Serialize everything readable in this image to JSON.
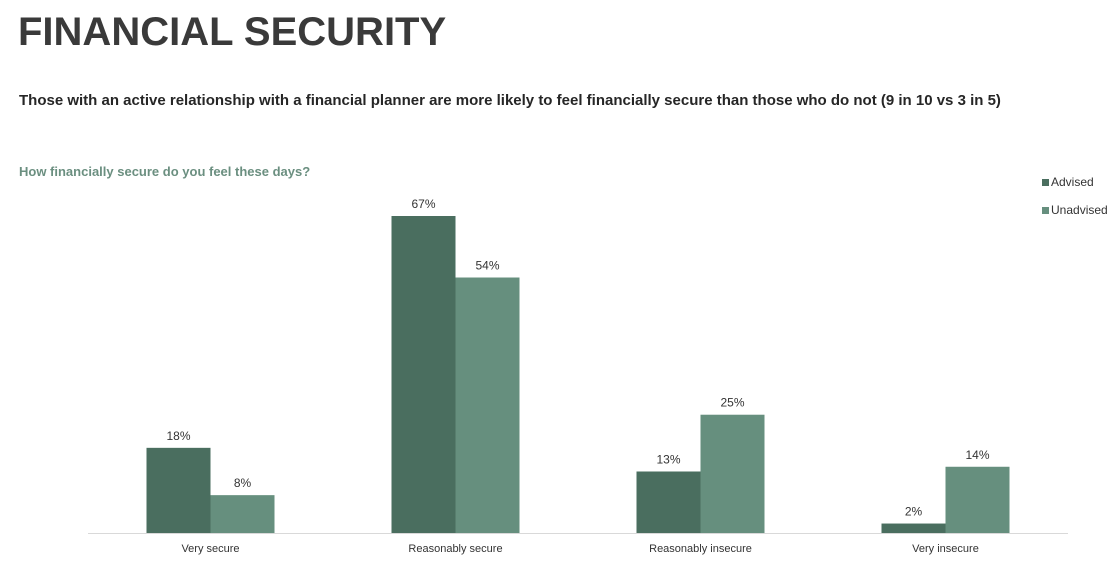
{
  "header": {
    "title": "FINANCIAL SECURITY",
    "subtitle": "Those with an active relationship with a financial planner are more likely to feel financially secure than those who do not (9 in 10 vs 3 in 5)"
  },
  "chart_data": {
    "type": "bar",
    "title": "How financially secure do you feel these days?",
    "categories": [
      "Very secure",
      "Reasonably secure",
      "Reasonably insecure",
      "Very insecure"
    ],
    "series": [
      {
        "name": "Advised",
        "values": [
          18,
          67,
          13,
          2
        ],
        "labels": [
          "18%",
          "67%",
          "13%",
          "2%"
        ],
        "color": "#4a6e5f"
      },
      {
        "name": "Unadvised",
        "values": [
          8,
          54,
          25,
          14
        ],
        "labels": [
          "8%",
          "54%",
          "25%",
          "14%"
        ],
        "color": "#668f7e"
      }
    ],
    "ylim": [
      0,
      67
    ],
    "legend": "top-right",
    "grid": false,
    "value_labels": true
  }
}
